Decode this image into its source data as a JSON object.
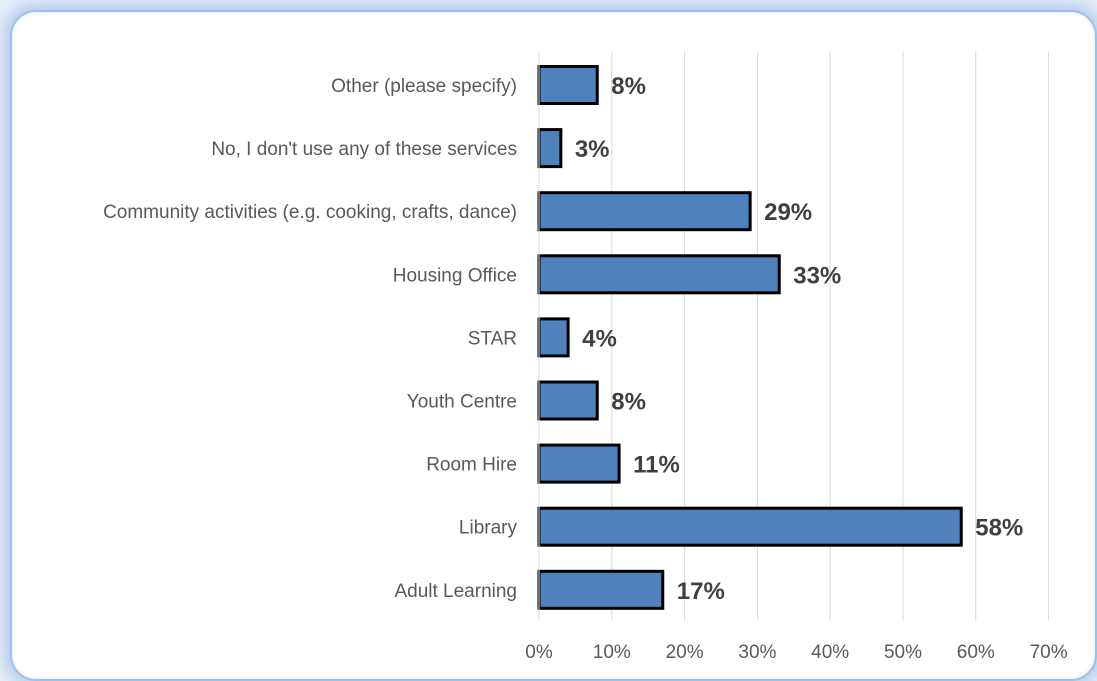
{
  "chart_data": {
    "type": "bar",
    "orientation": "horizontal",
    "categories": [
      "Other (please specify)",
      "No, I don't use any of these services",
      "Community activities (e.g. cooking, crafts, dance)",
      "Housing Office",
      "STAR",
      "Youth Centre",
      "Room Hire",
      "Library",
      "Adult Learning"
    ],
    "values": [
      8,
      3,
      29,
      33,
      4,
      8,
      11,
      58,
      17
    ],
    "data_labels": [
      "8%",
      "3%",
      "29%",
      "33%",
      "4%",
      "8%",
      "11%",
      "58%",
      "17%"
    ],
    "x_ticks": [
      "0%",
      "10%",
      "20%",
      "30%",
      "40%",
      "50%",
      "60%",
      "70%"
    ],
    "xlim": [
      0,
      70
    ],
    "grid": true,
    "bar_color": "#4f81bd",
    "bar_border_color": "#000000",
    "title": "",
    "xlabel": "",
    "ylabel": ""
  }
}
